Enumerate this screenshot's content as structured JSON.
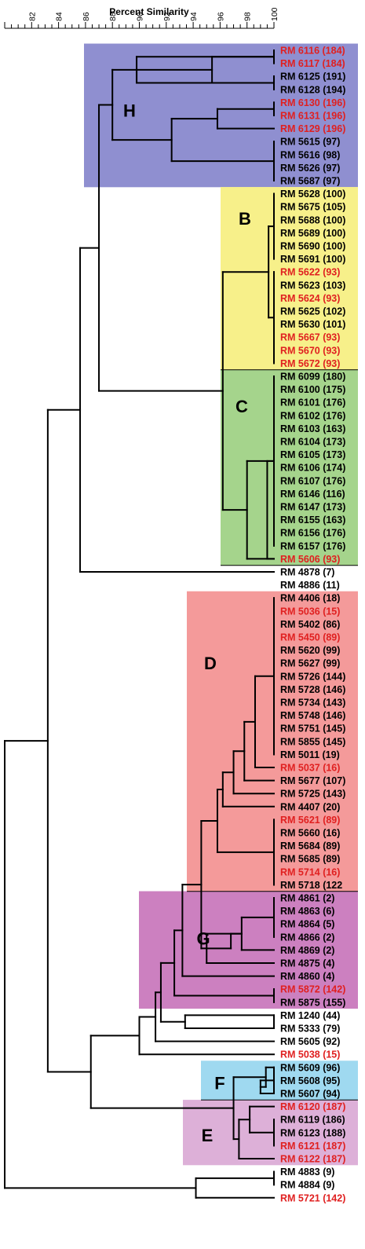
{
  "axis": {
    "title": "Percent Similarity",
    "min": 80,
    "max": 100,
    "ticks": [
      "82",
      "84",
      "86",
      "88",
      "90",
      "92",
      "94",
      "96",
      "98",
      "100"
    ]
  },
  "colors": {
    "black_label": "#000000",
    "red_label": "#e02020",
    "group_H": "#8f8fd0",
    "group_B": "#f7f08a",
    "group_C": "#a5d48c",
    "group_D": "#f49a9a",
    "group_G": "#cc80c0",
    "group_F": "#9fd9f0",
    "group_E": "#ddb0d8"
  },
  "groups": [
    {
      "name": "H"
    },
    {
      "name": "B"
    },
    {
      "name": "C"
    },
    {
      "name": "D"
    },
    {
      "name": "G"
    },
    {
      "name": "F"
    },
    {
      "name": "E"
    }
  ],
  "leaves": [
    {
      "label": "RM 6116 (184)",
      "red": true
    },
    {
      "label": "RM 6117 (184)",
      "red": true
    },
    {
      "label": "RM 6125 (191)",
      "red": false
    },
    {
      "label": "RM 6128 (194)",
      "red": false
    },
    {
      "label": "RM 6130 (196)",
      "red": true
    },
    {
      "label": "RM 6131 (196)",
      "red": true
    },
    {
      "label": "RM 6129 (196)",
      "red": true
    },
    {
      "label": "RM 5615 (97)",
      "red": false
    },
    {
      "label": "RM 5616 (98)",
      "red": false
    },
    {
      "label": "RM 5626 (97)",
      "red": false
    },
    {
      "label": "RM 5687 (97)",
      "red": false
    },
    {
      "label": "RM 5628 (100)",
      "red": false
    },
    {
      "label": "RM 5675 (105)",
      "red": false
    },
    {
      "label": "RM 5688 (100)",
      "red": false
    },
    {
      "label": "RM 5689 (100)",
      "red": false
    },
    {
      "label": "RM 5690 (100)",
      "red": false
    },
    {
      "label": "RM 5691 (100)",
      "red": false
    },
    {
      "label": "RM 5622 (93)",
      "red": true
    },
    {
      "label": "RM 5623 (103)",
      "red": false
    },
    {
      "label": "RM 5624 (93)",
      "red": true
    },
    {
      "label": "RM 5625 (102)",
      "red": false
    },
    {
      "label": "RM 5630 (101)",
      "red": false
    },
    {
      "label": "RM 5667 (93)",
      "red": true
    },
    {
      "label": "RM 5670 (93)",
      "red": true
    },
    {
      "label": "RM 5672 (93)",
      "red": true
    },
    {
      "label": "RM 6099 (180)",
      "red": false
    },
    {
      "label": "RM 6100 (175)",
      "red": false
    },
    {
      "label": "RM 6101 (176)",
      "red": false
    },
    {
      "label": "RM 6102 (176)",
      "red": false
    },
    {
      "label": "RM 6103 (163)",
      "red": false
    },
    {
      "label": "RM 6104 (173)",
      "red": false
    },
    {
      "label": "RM 6105 (173)",
      "red": false
    },
    {
      "label": "RM 6106 (174)",
      "red": false
    },
    {
      "label": "RM 6107 (176)",
      "red": false
    },
    {
      "label": "RM 6146 (116)",
      "red": false
    },
    {
      "label": "RM 6147 (173)",
      "red": false
    },
    {
      "label": "RM 6155 (163)",
      "red": false
    },
    {
      "label": "RM 6156 (176)",
      "red": false
    },
    {
      "label": "RM 6157 (176)",
      "red": false
    },
    {
      "label": "RM 5606 (93)",
      "red": true
    },
    {
      "label": "RM 4878 (7)",
      "red": false
    },
    {
      "label": "RM 4886 (11)",
      "red": false
    },
    {
      "label": "RM 4406 (18)",
      "red": false
    },
    {
      "label": "RM 5036 (15)",
      "red": true
    },
    {
      "label": "RM 5402 (86)",
      "red": false
    },
    {
      "label": "RM 5450 (89)",
      "red": true
    },
    {
      "label": "RM 5620 (99)",
      "red": false
    },
    {
      "label": "RM 5627 (99)",
      "red": false
    },
    {
      "label": "RM 5726 (144)",
      "red": false
    },
    {
      "label": "RM 5728 (146)",
      "red": false
    },
    {
      "label": "RM 5734 (143)",
      "red": false
    },
    {
      "label": "RM 5748 (146)",
      "red": false
    },
    {
      "label": "RM 5751 (145)",
      "red": false
    },
    {
      "label": "RM 5855 (145)",
      "red": false
    },
    {
      "label": "RM 5011 (19)",
      "red": false
    },
    {
      "label": "RM 5037 (16)",
      "red": true
    },
    {
      "label": "RM 5677 (107)",
      "red": false
    },
    {
      "label": "RM 5725 (143)",
      "red": false
    },
    {
      "label": "RM 4407 (20)",
      "red": false
    },
    {
      "label": "RM 5621 (89)",
      "red": true
    },
    {
      "label": "RM 5660 (16)",
      "red": false
    },
    {
      "label": "RM 5684 (89)",
      "red": false
    },
    {
      "label": "RM 5685 (89)",
      "red": false
    },
    {
      "label": "RM 5714 (16)",
      "red": true
    },
    {
      "label": "RM 5718 (122",
      "red": false
    },
    {
      "label": "RM 4861 (2)",
      "red": false
    },
    {
      "label": "RM 4863 (6)",
      "red": false
    },
    {
      "label": "RM 4864 (5)",
      "red": false
    },
    {
      "label": "RM 4866 (2)",
      "red": false
    },
    {
      "label": "RM 4869 (2)",
      "red": false
    },
    {
      "label": "RM 4875 (4)",
      "red": false
    },
    {
      "label": "RM 4860 (4)",
      "red": false
    },
    {
      "label": "RM 5872 (142)",
      "red": true
    },
    {
      "label": "RM 5875 (155)",
      "red": false
    },
    {
      "label": "RM 1240 (44)",
      "red": false
    },
    {
      "label": "RM 5333 (79)",
      "red": false
    },
    {
      "label": "RM 5605 (92)",
      "red": false
    },
    {
      "label": "RM 5038 (15)",
      "red": true
    },
    {
      "label": "RM 5609 (96)",
      "red": false
    },
    {
      "label": "RM 5608 (95)",
      "red": false
    },
    {
      "label": "RM 5607 (94)",
      "red": false
    },
    {
      "label": "RM 6120 (187)",
      "red": true
    },
    {
      "label": "RM 6119 (186)",
      "red": false
    },
    {
      "label": "RM 6123 (188)",
      "red": false
    },
    {
      "label": "RM 6121 (187)",
      "red": true
    },
    {
      "label": "RM 6122 (187)",
      "red": true
    },
    {
      "label": "RM 4883 (9)",
      "red": false
    },
    {
      "label": "RM 4884 (9)",
      "red": false
    },
    {
      "label": "RM 5721 (142)",
      "red": true
    }
  ]
}
